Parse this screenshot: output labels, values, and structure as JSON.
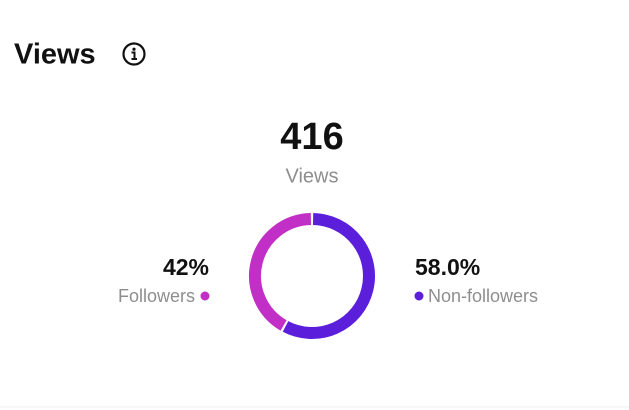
{
  "chart_data": {
    "type": "donut",
    "title": "Views",
    "total": 416,
    "total_label": "Views",
    "categories": [
      "Followers",
      "Non-followers"
    ],
    "values": [
      42,
      58.0
    ],
    "value_labels": [
      "42%",
      "58.0%"
    ],
    "colors": [
      "#c22fc6",
      "#5b1fdc"
    ]
  }
}
